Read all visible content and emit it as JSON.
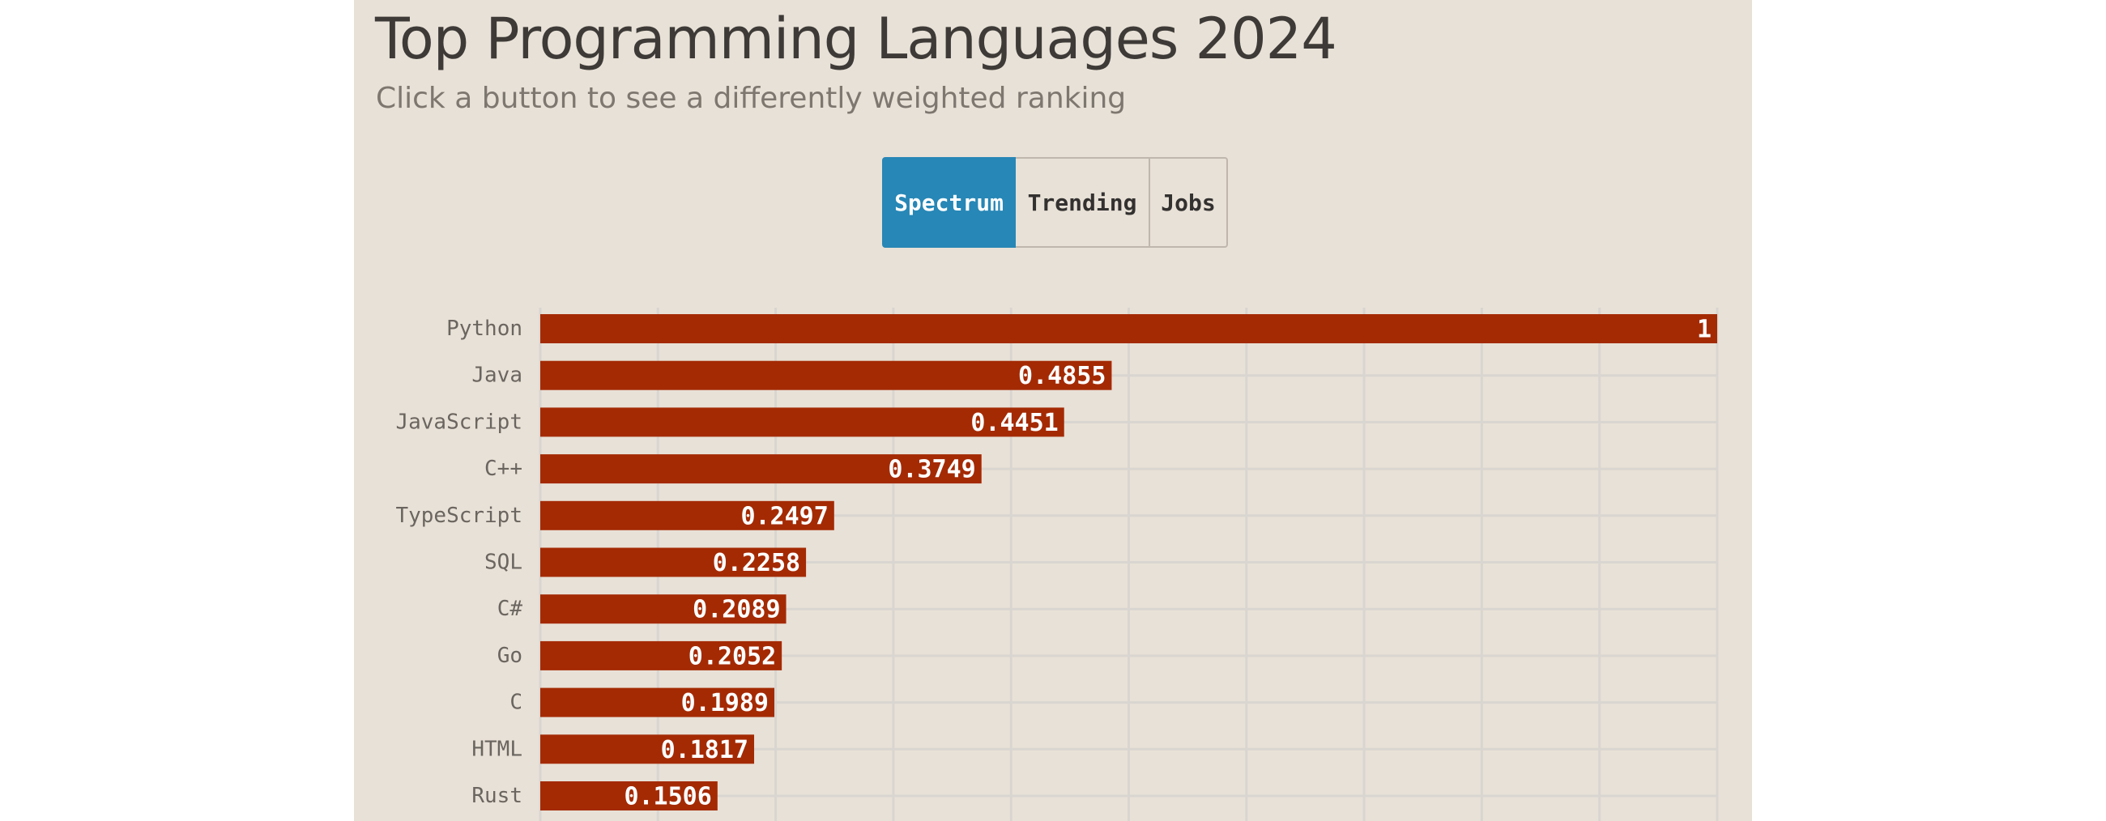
{
  "title": "Top Programming Languages 2024",
  "subtitle": "Click a button to see a differently weighted ranking",
  "buttons": [
    {
      "label": "Spectrum",
      "active": true
    },
    {
      "label": "Trending",
      "active": false
    },
    {
      "label": "Jobs",
      "active": false
    }
  ],
  "colors": {
    "background": "#e8e1d7",
    "bar": "#a42a04",
    "active_button": "#2787b6",
    "gridline": "#d9d5d0"
  },
  "chart_data": {
    "type": "bar",
    "orientation": "horizontal",
    "title": "Top Programming Languages 2024",
    "subtitle": "Click a button to see a differently weighted ranking",
    "categories": [
      "Python",
      "Java",
      "JavaScript",
      "C++",
      "TypeScript",
      "SQL",
      "C#",
      "Go",
      "C",
      "HTML",
      "Rust"
    ],
    "values": [
      1,
      0.4855,
      0.4451,
      0.3749,
      0.2497,
      0.2258,
      0.2089,
      0.2052,
      0.1989,
      0.1817,
      0.1506
    ],
    "xlim": [
      0,
      1
    ],
    "grid": true,
    "legend": "none"
  }
}
